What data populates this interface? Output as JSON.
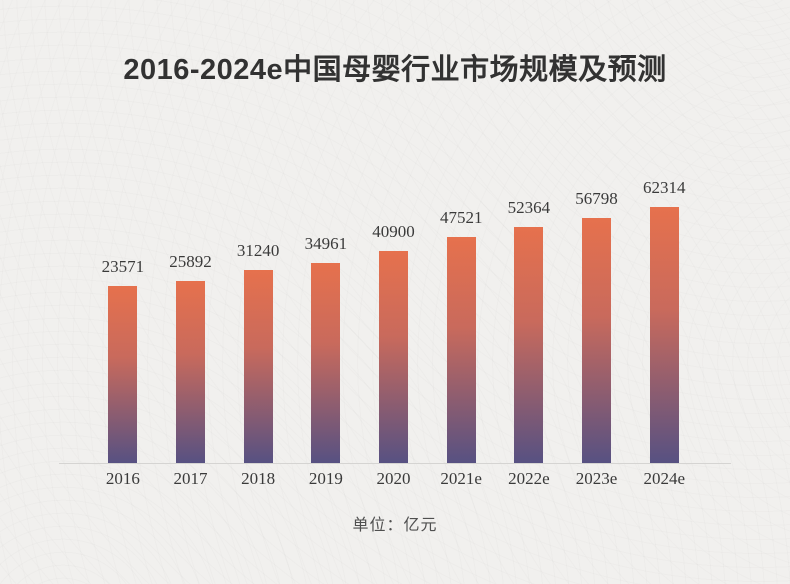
{
  "page": {
    "background_color": "#f1f0ee"
  },
  "chart": {
    "title": "2016-2024e中国母婴行业市场规模及预测",
    "unit_label": "单位：亿元",
    "colors": {
      "bar_gradient_top": "#e6714d",
      "bar_gradient_mid": "#c96a5c",
      "bar_gradient_bottom": "#575182",
      "title_text": "#323232",
      "label_text": "#3a3a3a",
      "axis_line": "#d5d4d2"
    }
  },
  "chart_data": {
    "type": "bar",
    "title": "2016-2024e中国母婴行业市场规模及预测",
    "categories": [
      "2016",
      "2017",
      "2018",
      "2019",
      "2020",
      "2021e",
      "2022e",
      "2023e",
      "2024e"
    ],
    "values": [
      23571,
      25892,
      31240,
      34961,
      40900,
      47521,
      52364,
      56798,
      62314
    ],
    "xlabel": "",
    "ylabel": "单位：亿元",
    "unit": "亿元",
    "ylim": [
      0,
      70000
    ],
    "grid": false,
    "legend": false,
    "data_labels": true,
    "bar_orientation": "vertical"
  }
}
